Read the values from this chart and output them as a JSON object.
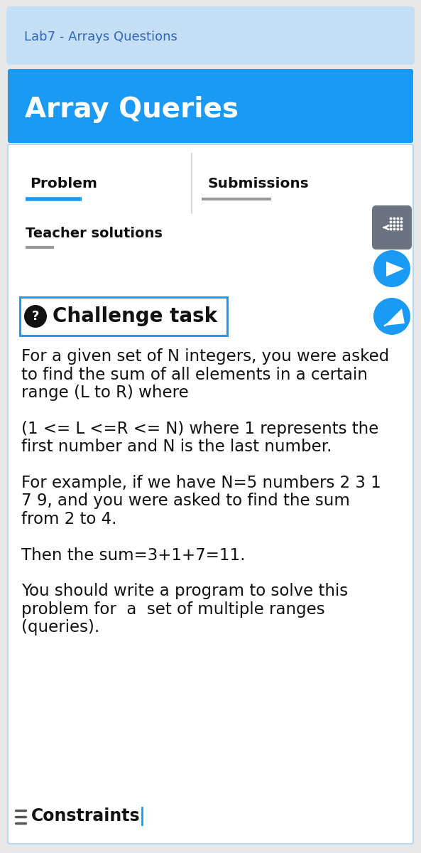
{
  "bg_color": "#e8e8e8",
  "top_bar_color": "#c5dff5",
  "top_bar_text": "Lab7 - Arrays Questions",
  "top_bar_text_color": "#3366bb",
  "header_bg_color": "#1a9af5",
  "header_text": "Array Queries",
  "header_text_color": "#ffffff",
  "tab1_text": "Problem",
  "tab2_text": "Submissions",
  "tab_text_color": "#111111",
  "tab1_underline_color": "#1a9af5",
  "tab2_underline_color": "#999999",
  "teacher_label": "Teacher solutions",
  "teacher_label_color": "#111111",
  "teacher_underline_color": "#999999",
  "challenge_icon_bg": "#111111",
  "challenge_text": "Challenge task",
  "challenge_text_color": "#111111",
  "challenge_box_color": "#1a9af5",
  "challenge_underline_color": "#1a9af5",
  "body_text_color": "#111111",
  "para1_lines": [
    "For a given set of N integers, you were asked",
    "to find the sum of all elements in a certain",
    "range (L to R) where"
  ],
  "para2_lines": [
    "(1 <= L <=R <= N) where 1 represents the",
    "first number and N is the last number."
  ],
  "para3_lines": [
    "For example, if we have N=5 numbers 2 3 1",
    "7 9, and you were asked to find the sum",
    "from 2 to 4."
  ],
  "para4_lines": [
    "Then the sum=3+1+7=11."
  ],
  "para5_lines": [
    "You should write a program to solve this",
    "problem for  a  set of multiple ranges",
    "(queries)."
  ],
  "constraints_text": "Constraints",
  "side_btn1_color": "#6b7280",
  "side_btn2_color": "#1a9af5",
  "side_btn3_color": "#1a9af5",
  "card_border_color": "#b8d8f5",
  "card_bg_color": "#ffffff",
  "divider_color": "#cccccc"
}
